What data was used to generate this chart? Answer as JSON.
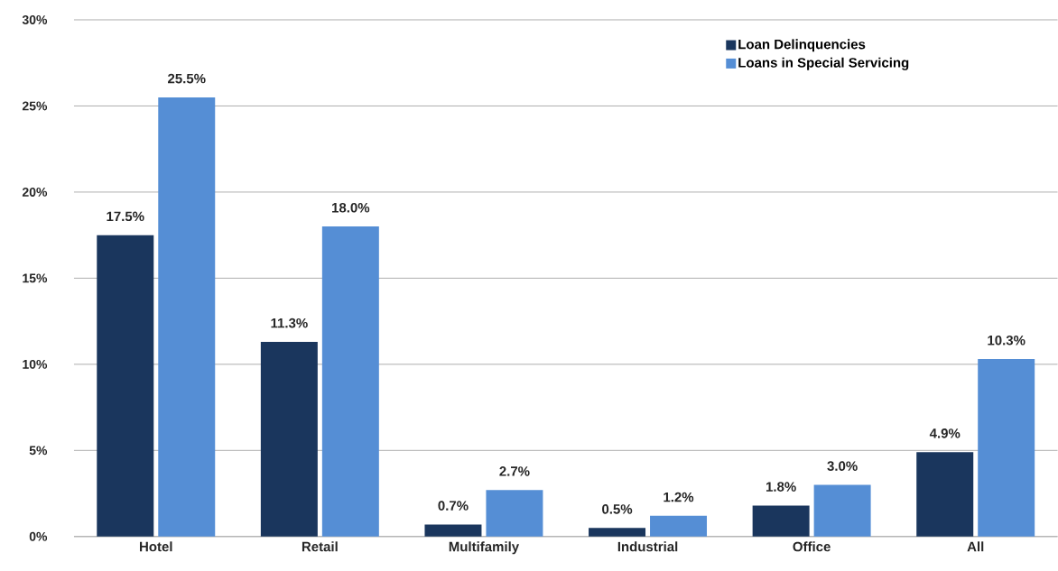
{
  "chart_data": {
    "type": "bar",
    "categories": [
      "Hotel",
      "Retail",
      "Multifamily",
      "Industrial",
      "Office",
      "All"
    ],
    "series": [
      {
        "name": "Loan Delinquencies",
        "color": "#1a365d",
        "values": [
          17.5,
          11.3,
          0.7,
          0.5,
          1.8,
          4.9
        ],
        "value_labels": [
          "17.5%",
          "11.3%",
          "0.7%",
          "0.5%",
          "1.8%",
          "4.9%"
        ]
      },
      {
        "name": "Loans in Special Servicing",
        "color": "#558ed5",
        "values": [
          25.5,
          18.0,
          2.7,
          1.2,
          3.0,
          10.3
        ],
        "value_labels": [
          "25.5%",
          "18.0%",
          "2.7%",
          "1.2%",
          "3.0%",
          "10.3%"
        ]
      }
    ],
    "ylim": [
      0,
      30
    ],
    "yticks": [
      {
        "value": 0,
        "label": "0%"
      },
      {
        "value": 5,
        "label": "5%"
      },
      {
        "value": 10,
        "label": "10%"
      },
      {
        "value": 15,
        "label": "15%"
      },
      {
        "value": 20,
        "label": "20%"
      },
      {
        "value": 25,
        "label": "25%"
      },
      {
        "value": 30,
        "label": "30%"
      }
    ],
    "grid": "y",
    "legend": "top right"
  }
}
